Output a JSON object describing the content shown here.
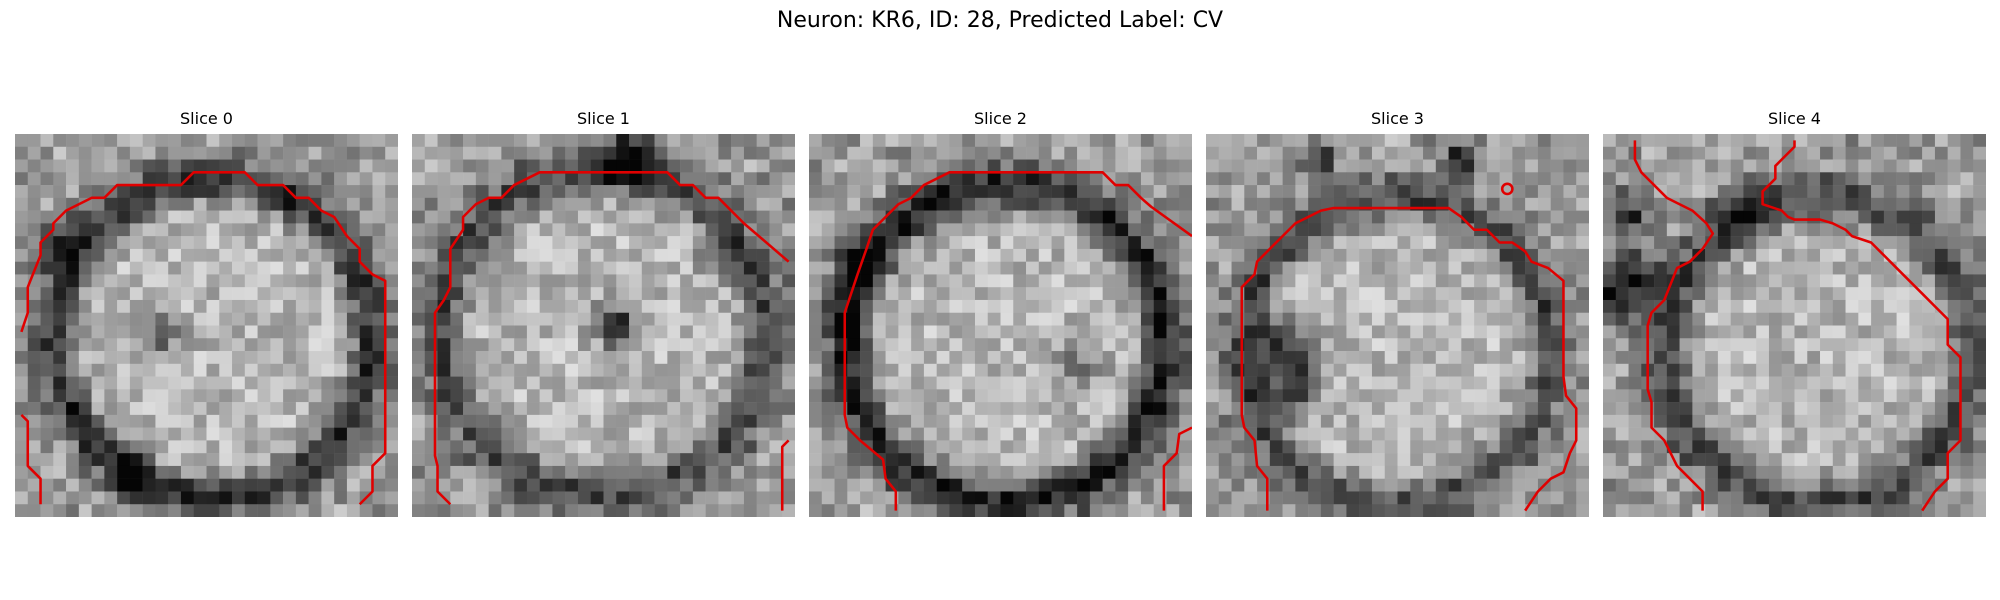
{
  "figure": {
    "title": "Neuron: KR6, ID: 28, Predicted Label: CV"
  },
  "slices": [
    {
      "title": "Slice 0"
    },
    {
      "title": "Slice 1"
    },
    {
      "title": "Slice 2"
    },
    {
      "title": "Slice 3"
    },
    {
      "title": "Slice 4"
    }
  ],
  "colors": {
    "contour": "#e00000"
  }
}
